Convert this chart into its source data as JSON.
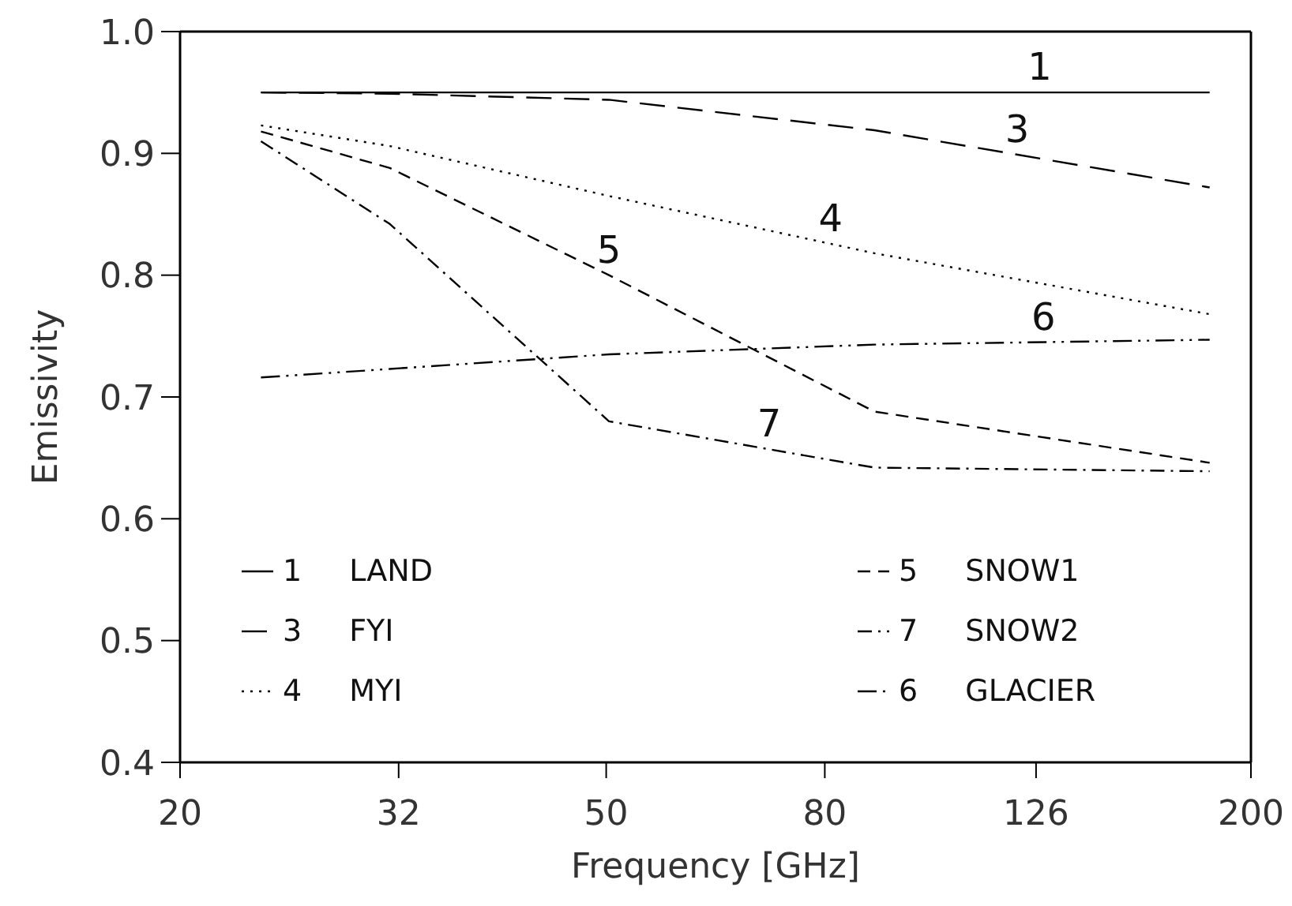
{
  "chart_data": {
    "type": "line",
    "xlabel": "Frequency [GHz]",
    "ylabel": "Emissivity",
    "log": "x",
    "xlim": [
      20,
      200
    ],
    "xticks": [
      20,
      32,
      50,
      80,
      126,
      200
    ],
    "ylim": [
      0.4,
      1.0
    ],
    "yticks": [
      0.4,
      0.5,
      0.6,
      0.7,
      0.8,
      0.9,
      {
        "value": 1.0,
        "label": "1.0"
      }
    ],
    "grid": false,
    "legend": "bottom",
    "marker": "none",
    "x": [
      23.8,
      31.4,
      50.3,
      89,
      183
    ],
    "series": [
      {
        "name": "1 LAND",
        "color": "#000000",
        "line_style": "solid",
        "values": [
          0.95,
          0.95,
          0.95,
          0.95,
          0.95
        ]
      },
      {
        "name": "3 FYI",
        "color": "#000000",
        "line_style": "longdashed",
        "values": [
          0.95,
          0.949,
          0.944,
          0.919,
          0.872
        ]
      },
      {
        "name": "4 MYI",
        "color": "#000000",
        "line_style": "dotted",
        "values": [
          0.923,
          0.906,
          0.865,
          0.818,
          0.768
        ]
      },
      {
        "name": "5 SNOW1",
        "color": "#000000",
        "line_style": "dashed",
        "values": [
          0.918,
          0.888,
          0.8,
          0.688,
          0.646
        ]
      },
      {
        "name": "7 SNOW2",
        "color": "#000000",
        "line_style": "dashdot",
        "values": [
          0.91,
          0.842,
          0.68,
          0.642,
          0.639
        ]
      },
      {
        "name": "6 GLACIER",
        "color": "#000000",
        "line_style": "dashdotdot",
        "values": [
          0.716,
          0.723,
          0.735,
          0.743,
          0.747
        ]
      }
    ],
    "annotations": [
      {
        "text": "1",
        "x": 127,
        "y": 0.95
      },
      {
        "text": "3",
        "x": 121,
        "y": 0.899
      },
      {
        "text": "4",
        "x": 81,
        "y": 0.826
      },
      {
        "text": "5",
        "x": 50.3,
        "y": 0.8
      },
      {
        "text": "6",
        "x": 128,
        "y": 0.745
      },
      {
        "text": "7",
        "x": 71,
        "y": 0.657
      }
    ]
  }
}
